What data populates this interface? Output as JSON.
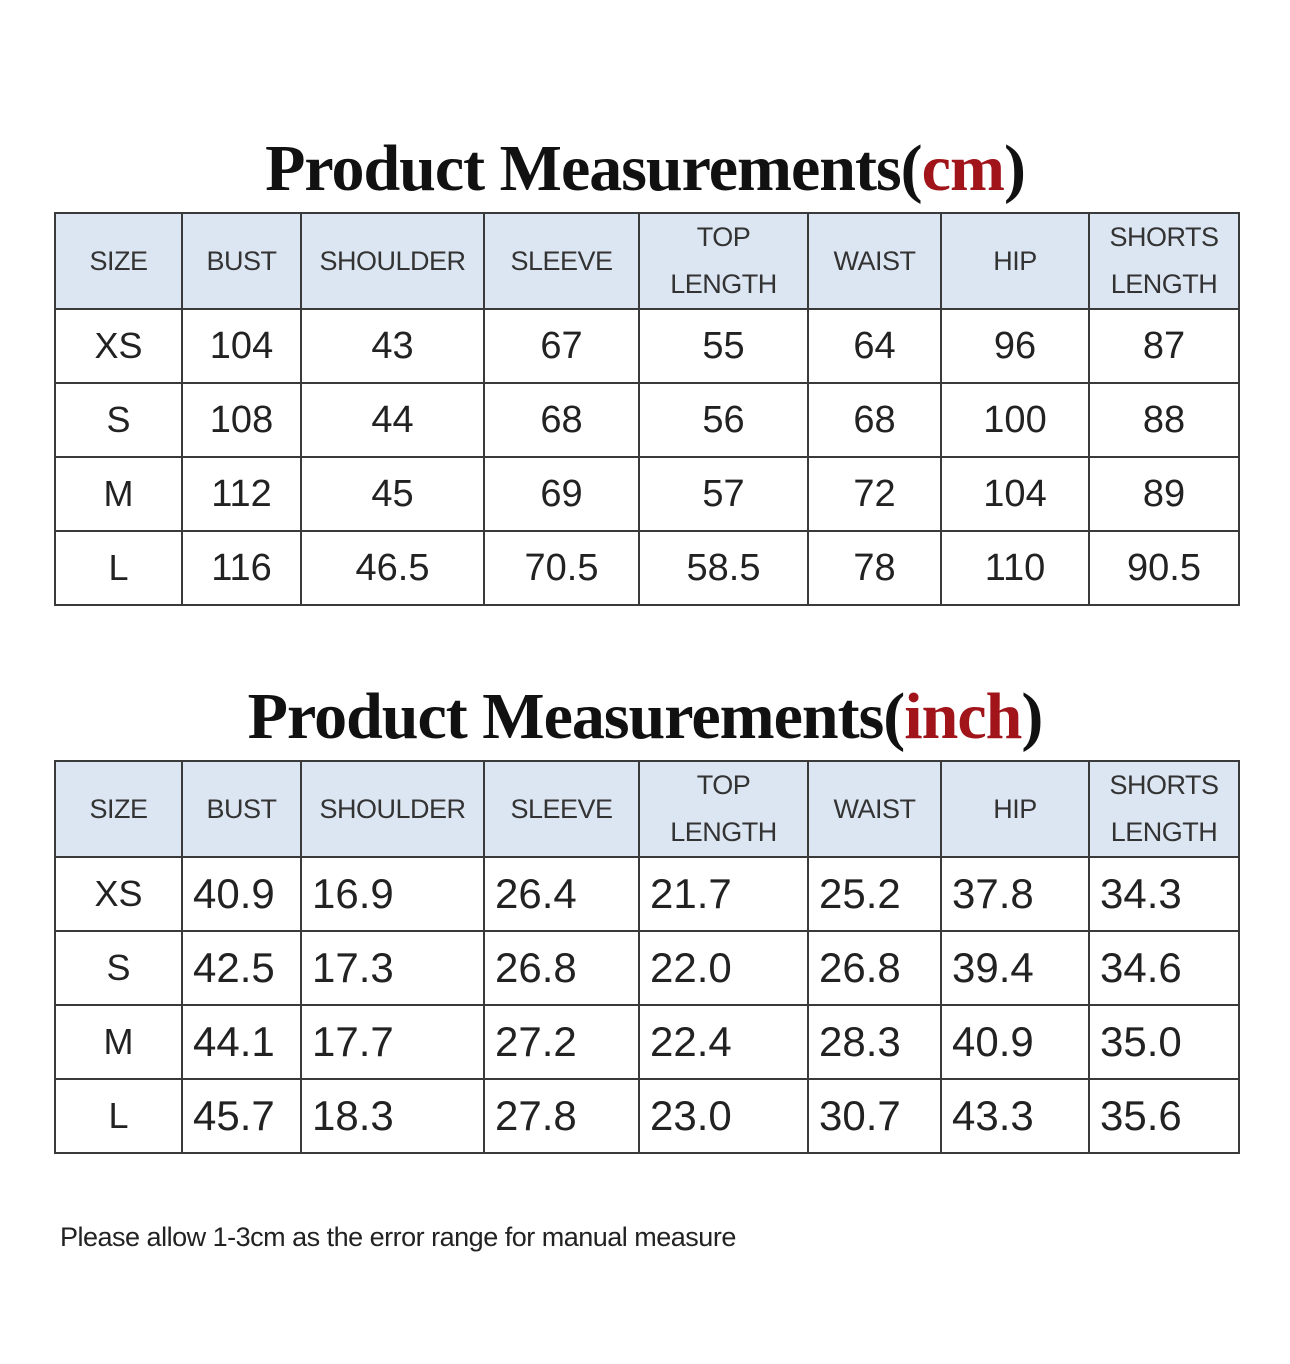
{
  "sections": [
    {
      "title": {
        "text": "Product Measurements(",
        "unit": "cm",
        "close": ")"
      },
      "table": {
        "header": [
          "SIZE",
          "BUST",
          "SHOULDER",
          "SLEEVE",
          "TOP LENGTH",
          "WAIST",
          "HIP",
          "SHORTS LENGTH"
        ],
        "rows": [
          [
            "XS",
            "104",
            "43",
            "67",
            "55",
            "64",
            "96",
            "87"
          ],
          [
            "S",
            "108",
            "44",
            "68",
            "56",
            "68",
            "100",
            "88"
          ],
          [
            "M",
            "112",
            "45",
            "69",
            "57",
            "72",
            "104",
            "89"
          ],
          [
            "L",
            "116",
            "46.5",
            "70.5",
            "58.5",
            "78",
            "110",
            "90.5"
          ]
        ]
      }
    },
    {
      "title": {
        "text": "Product Measurements(",
        "unit": "inch",
        "close": ")"
      },
      "table": {
        "header": [
          "SIZE",
          "BUST",
          "SHOULDER",
          "SLEEVE",
          "TOP LENGTH",
          "WAIST",
          "HIP",
          "SHORTS LENGTH"
        ],
        "rows": [
          [
            "XS",
            "40.9",
            "16.9",
            "26.4",
            "21.7",
            "25.2",
            "37.8",
            "34.3"
          ],
          [
            "S",
            "42.5",
            "17.3",
            "26.8",
            "22.0",
            "26.8",
            "39.4",
            "34.6"
          ],
          [
            "M",
            "44.1",
            "17.7",
            "27.2",
            "22.4",
            "28.3",
            "40.9",
            "35.0"
          ],
          [
            "L",
            "45.7",
            "18.3",
            "27.8",
            "23.0",
            "30.7",
            "43.3",
            "35.6"
          ]
        ]
      }
    }
  ],
  "note": "Please allow 1-3cm as the error range for manual measure"
}
